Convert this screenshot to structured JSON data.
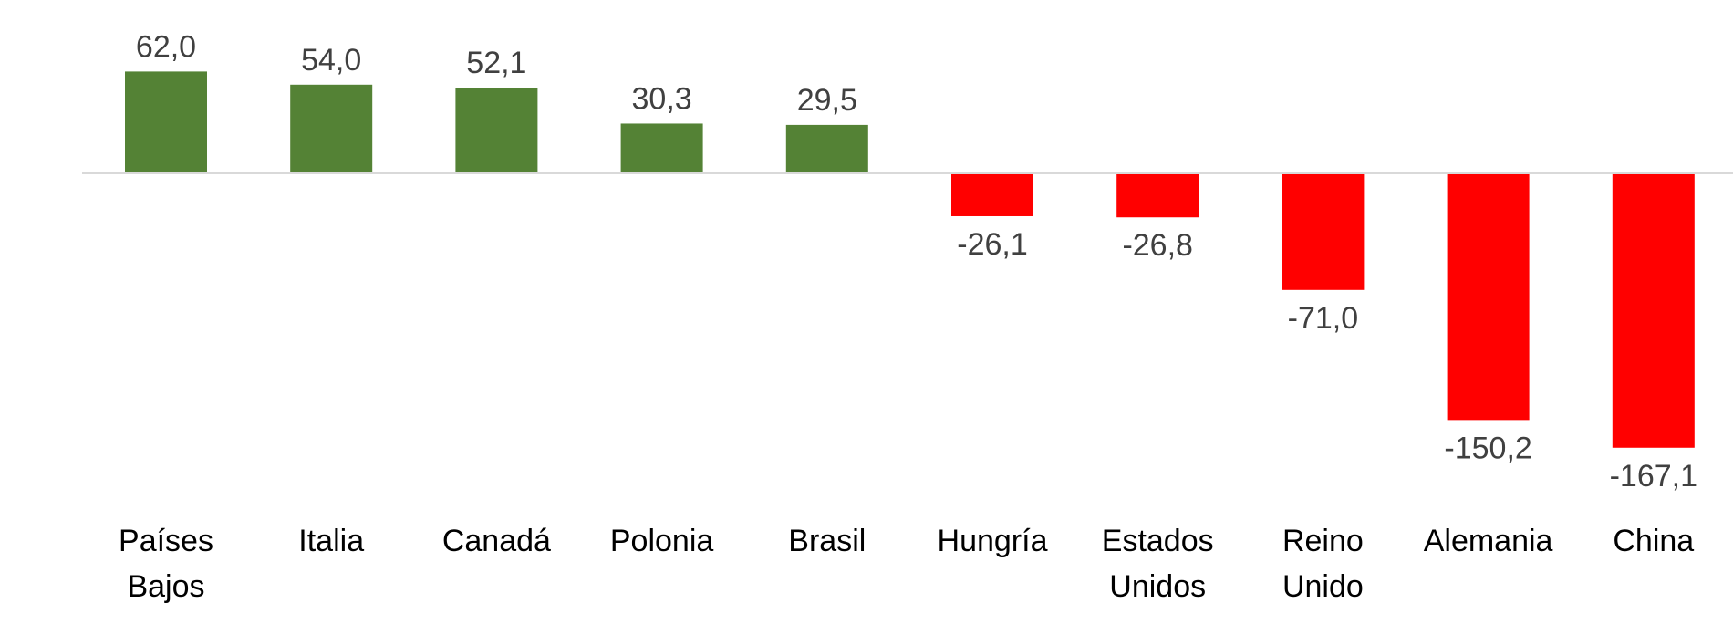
{
  "chart_data": {
    "type": "bar",
    "categories": [
      [
        "Países",
        "Bajos"
      ],
      [
        "Italia"
      ],
      [
        "Canadá"
      ],
      [
        "Polonia"
      ],
      [
        "Brasil"
      ],
      [
        "Hungría"
      ],
      [
        "Estados",
        "Unidos"
      ],
      [
        "Reino",
        "Unido"
      ],
      [
        "Alemania"
      ],
      [
        "China"
      ]
    ],
    "values": [
      62.0,
      54.0,
      52.1,
      30.3,
      29.5,
      -26.1,
      -26.8,
      -71.0,
      -150.2,
      -167.1
    ],
    "value_labels": [
      "62,0",
      "54,0",
      "52,1",
      "30,3",
      "29,5",
      "-26,1",
      "-26,8",
      "-71,0",
      "-150,2",
      "-167,1"
    ],
    "positive_color": "#548235",
    "negative_color": "#FF0000",
    "baseline_color": "#D9D9D9",
    "grid": false,
    "legend": "none",
    "ylim": [
      -170,
      70
    ]
  }
}
